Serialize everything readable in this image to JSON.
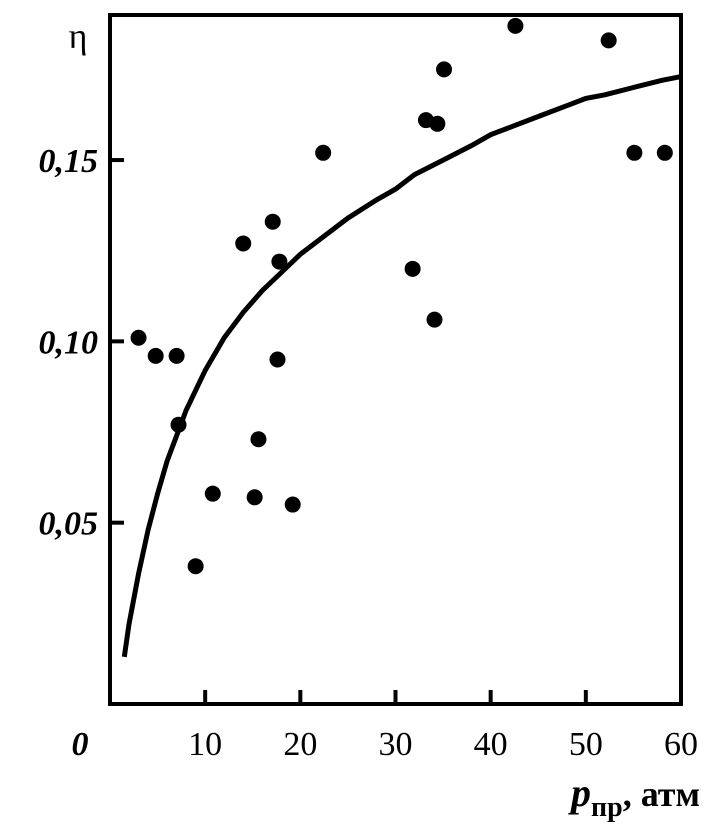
{
  "chart_data": {
    "type": "scatter",
    "ylabel": "η",
    "xlabel_main": "p",
    "xlabel_sub": "пр",
    "xlabel_unit": ", атм",
    "origin_label": "0",
    "xlim": [
      0,
      60
    ],
    "ylim": [
      0,
      0.19
    ],
    "xticks": [
      10,
      20,
      30,
      40,
      50,
      60
    ],
    "xtick_labels": [
      "10",
      "20",
      "30",
      "40",
      "50",
      "60"
    ],
    "yticks": [
      0.05,
      0.1,
      0.15
    ],
    "ytick_labels": [
      "0,05",
      "0,10",
      "0,15"
    ],
    "grid": false,
    "points": [
      {
        "x": 3.0,
        "y": 0.101
      },
      {
        "x": 4.8,
        "y": 0.096
      },
      {
        "x": 7.0,
        "y": 0.096
      },
      {
        "x": 7.2,
        "y": 0.077
      },
      {
        "x": 9.0,
        "y": 0.038
      },
      {
        "x": 10.8,
        "y": 0.058
      },
      {
        "x": 14.0,
        "y": 0.127
      },
      {
        "x": 15.2,
        "y": 0.057
      },
      {
        "x": 15.6,
        "y": 0.073
      },
      {
        "x": 17.1,
        "y": 0.133
      },
      {
        "x": 17.6,
        "y": 0.095
      },
      {
        "x": 17.8,
        "y": 0.122
      },
      {
        "x": 19.2,
        "y": 0.055
      },
      {
        "x": 22.4,
        "y": 0.152
      },
      {
        "x": 31.8,
        "y": 0.12
      },
      {
        "x": 33.2,
        "y": 0.161
      },
      {
        "x": 34.1,
        "y": 0.106
      },
      {
        "x": 34.4,
        "y": 0.16
      },
      {
        "x": 35.1,
        "y": 0.175
      },
      {
        "x": 42.6,
        "y": 0.187
      },
      {
        "x": 52.4,
        "y": 0.183
      },
      {
        "x": 55.1,
        "y": 0.152
      },
      {
        "x": 58.3,
        "y": 0.152
      }
    ],
    "fit_curve": {
      "x": [
        1.5,
        2,
        3,
        4,
        5,
        6,
        7,
        8,
        10,
        12,
        14,
        16,
        18,
        20,
        22,
        25,
        28,
        30,
        32,
        35,
        38,
        40,
        42,
        45,
        48,
        50,
        52,
        55,
        58,
        60
      ],
      "y": [
        0.013,
        0.022,
        0.036,
        0.048,
        0.058,
        0.067,
        0.074,
        0.081,
        0.092,
        0.101,
        0.108,
        0.114,
        0.119,
        0.124,
        0.128,
        0.134,
        0.139,
        0.142,
        0.146,
        0.15,
        0.154,
        0.157,
        0.159,
        0.162,
        0.165,
        0.167,
        0.168,
        0.17,
        0.172,
        0.173
      ]
    },
    "colors": {
      "marks": "#000000",
      "background": "#ffffff"
    }
  }
}
